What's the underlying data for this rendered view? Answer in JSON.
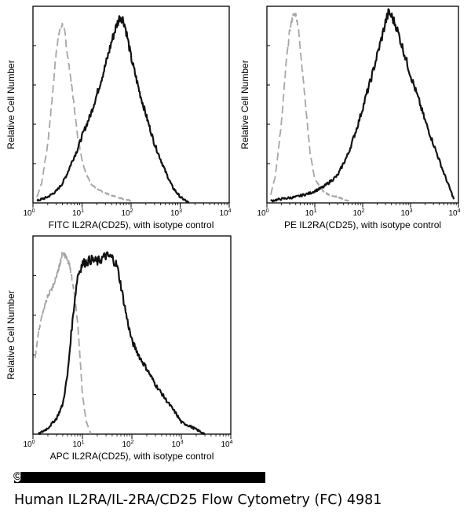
{
  "caption": "Human IL2RA/IL-2RA/CD25 Flow Cytometry (FC) 4981",
  "copyright_mark": "©",
  "colors": {
    "sample": "#111111",
    "isotype": "#a6a6a6",
    "frame": "#000000"
  },
  "chart_data": [
    {
      "type": "line",
      "name": "fitc",
      "xscale": "log",
      "xlim": [
        1,
        10000
      ],
      "ylim": [
        0,
        100
      ],
      "xlabel": "FITC IL2RA(CD25), with isotype control",
      "ylabel": "Relative Cell Number",
      "xticks": [
        {
          "base": "10",
          "exp": "0"
        },
        {
          "base": "10",
          "exp": "1"
        },
        {
          "base": "10",
          "exp": "2"
        },
        {
          "base": "10",
          "exp": "3"
        },
        {
          "base": "10",
          "exp": "4"
        }
      ],
      "series": [
        {
          "name": "sample",
          "style": "solid",
          "x": [
            1.2,
            2,
            3,
            4,
            5,
            6,
            8,
            10,
            15,
            20,
            30,
            40,
            50,
            60,
            70,
            80,
            100,
            150,
            200,
            300,
            500,
            700,
            1000,
            1500
          ],
          "y": [
            1,
            3,
            6,
            10,
            15,
            20,
            27,
            34,
            45,
            55,
            70,
            82,
            90,
            95,
            93,
            87,
            74,
            56,
            45,
            30,
            16,
            8,
            3,
            0
          ]
        },
        {
          "name": "isotype",
          "style": "dashed",
          "x": [
            1.2,
            1.5,
            2,
            2.5,
            3,
            3.5,
            4,
            4.5,
            5,
            6,
            7,
            8,
            10,
            12,
            15,
            20,
            30,
            50,
            100
          ],
          "y": [
            3,
            10,
            30,
            55,
            78,
            88,
            91,
            86,
            76,
            62,
            48,
            35,
            22,
            15,
            10,
            7,
            5,
            3,
            1
          ]
        }
      ]
    },
    {
      "type": "line",
      "name": "pe",
      "xscale": "log",
      "xlim": [
        1,
        10000
      ],
      "ylim": [
        0,
        100
      ],
      "xlabel": "PE IL2RA(CD25), with isotype control",
      "ylabel": "Relative Cell Number",
      "xticks": [
        {
          "base": "10",
          "exp": "0"
        },
        {
          "base": "10",
          "exp": "1"
        },
        {
          "base": "10",
          "exp": "2"
        },
        {
          "base": "10",
          "exp": "3"
        },
        {
          "base": "10",
          "exp": "4"
        }
      ],
      "series": [
        {
          "name": "sample",
          "style": "solid",
          "x": [
            1.2,
            2,
            4,
            8,
            15,
            30,
            50,
            80,
            120,
            150,
            200,
            250,
            300,
            350,
            400,
            500,
            700,
            1000,
            1500,
            2000,
            3000,
            5000,
            8000
          ],
          "y": [
            1,
            2,
            3,
            5,
            8,
            14,
            25,
            40,
            55,
            63,
            75,
            84,
            92,
            97,
            95,
            90,
            78,
            65,
            52,
            42,
            30,
            15,
            2
          ]
        },
        {
          "name": "isotype",
          "style": "dashed",
          "x": [
            1.2,
            1.5,
            2,
            2.5,
            3,
            3.5,
            4,
            4.5,
            5,
            6,
            7,
            8,
            10,
            15,
            20,
            30,
            50
          ],
          "y": [
            4,
            14,
            40,
            70,
            88,
            95,
            96,
            90,
            78,
            58,
            40,
            25,
            12,
            6,
            4,
            3,
            1
          ]
        }
      ]
    },
    {
      "type": "line",
      "name": "apc",
      "xscale": "log",
      "xlim": [
        1,
        10000
      ],
      "ylim": [
        0,
        100
      ],
      "xlabel": "APC IL2RA(CD25), with isotype control",
      "ylabel": "Relative Cell Number",
      "xticks": [
        {
          "base": "10",
          "exp": "0"
        },
        {
          "base": "10",
          "exp": "1"
        },
        {
          "base": "10",
          "exp": "2"
        },
        {
          "base": "10",
          "exp": "3"
        },
        {
          "base": "10",
          "exp": "4"
        }
      ],
      "series": [
        {
          "name": "sample",
          "style": "solid",
          "x": [
            1.3,
            2,
            3,
            4,
            5,
            6,
            7,
            8,
            10,
            15,
            20,
            30,
            40,
            50,
            60,
            80,
            100,
            150,
            200,
            300,
            500,
            800,
            1000,
            1500,
            3000
          ],
          "y": [
            0,
            3,
            8,
            15,
            30,
            52,
            68,
            80,
            86,
            88,
            87,
            90,
            89,
            85,
            75,
            58,
            47,
            38,
            33,
            25,
            17,
            10,
            6,
            4,
            0
          ]
        },
        {
          "name": "isotype",
          "style": "dashed",
          "x": [
            1.1,
            1.3,
            1.6,
            2,
            2.5,
            3,
            3.5,
            4,
            4.5,
            5,
            5.5,
            6,
            7,
            8,
            9,
            10,
            12,
            15
          ],
          "y": [
            38,
            52,
            62,
            70,
            74,
            80,
            86,
            92,
            90,
            88,
            85,
            80,
            70,
            56,
            38,
            20,
            6,
            0
          ]
        }
      ]
    }
  ]
}
